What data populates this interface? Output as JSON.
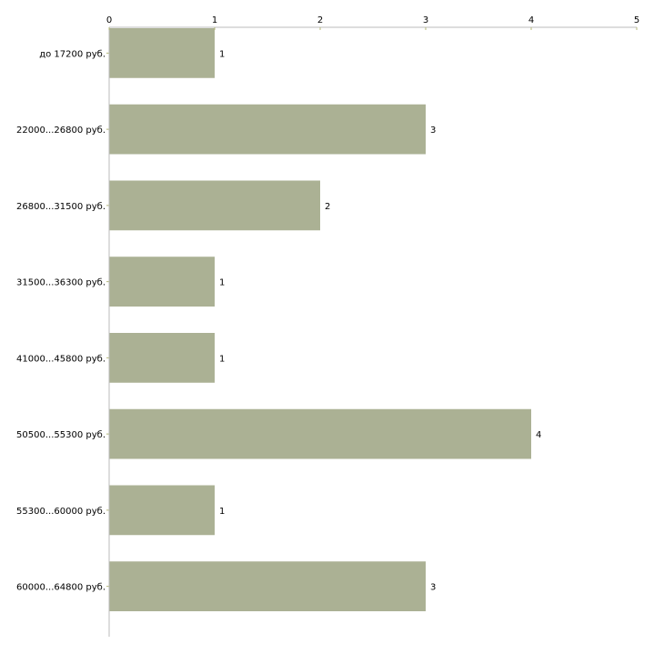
{
  "chart_data": {
    "type": "bar",
    "orientation": "horizontal",
    "title": "",
    "xlabel": "",
    "ylabel": "",
    "xlim": [
      0,
      5
    ],
    "xticks": [
      0,
      1,
      2,
      3,
      4,
      5
    ],
    "categories": [
      "до 17200 руб.",
      "22000...26800 руб.",
      "26800...31500 руб.",
      "31500...36300 руб.",
      "41000...45800 руб.",
      "50500...55300 руб.",
      "55300...60000 руб.",
      "60000...64800 руб."
    ],
    "values": [
      1,
      3,
      2,
      1,
      1,
      4,
      1,
      3
    ],
    "bar_color": "#abb194",
    "axis_color": "#bbbbbb",
    "tick_color": "#b5b87a",
    "grid": false
  }
}
